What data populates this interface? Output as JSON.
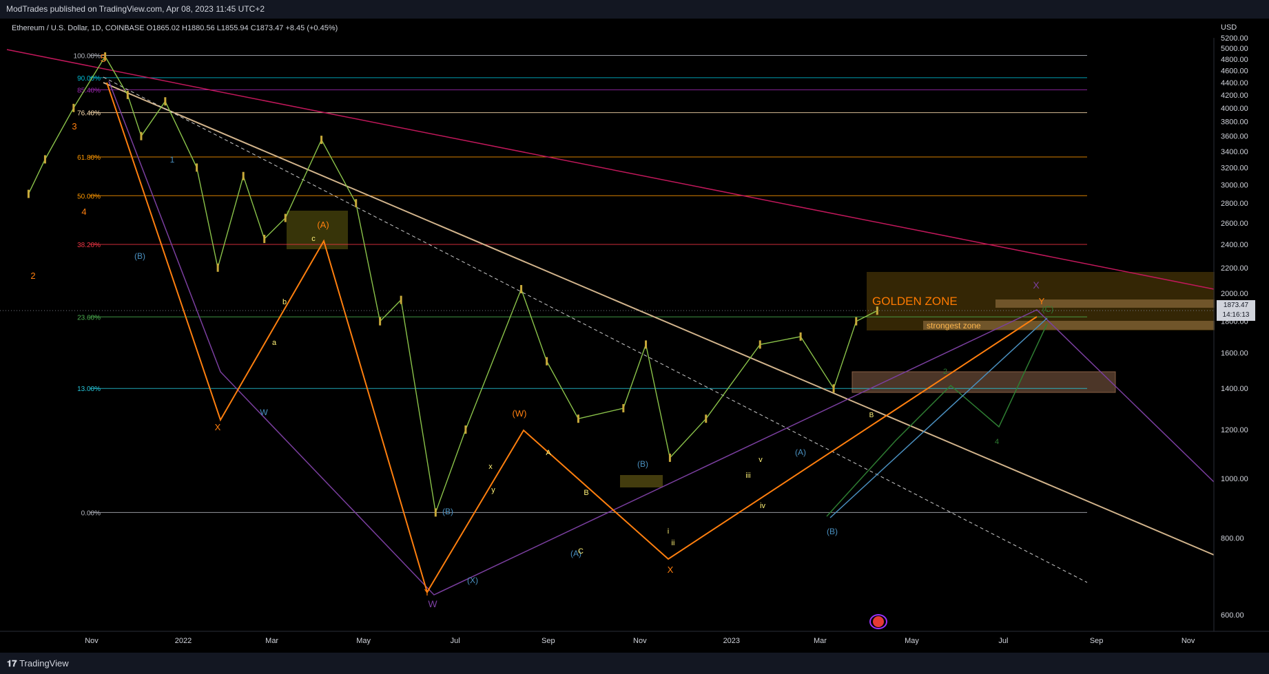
{
  "header": {
    "publish_line": "ModTrades published on TradingView.com, Apr 08, 2023 11:45 UTC+2"
  },
  "legend": {
    "text": "Ethereum / U.S. Dollar, 1D, COINBASE  O1865.02  H1880.56  L1855.94  C1873.47  +8.45 (+0.45%)"
  },
  "footer": {
    "brand": "TradingView"
  },
  "chart_data": {
    "type": "line",
    "symbol": "Ethereum / U.S. Dollar",
    "interval": "1D",
    "exchange": "COINBASE",
    "ohlc": {
      "open": 1865.02,
      "high": 1880.56,
      "low": 1855.94,
      "close": 1873.47,
      "change": 8.45,
      "change_pct": 0.45
    },
    "currency": "USD",
    "last_price": "1873.47",
    "countdown": "14:16:13",
    "y_axis_ticks": [
      5200,
      5000,
      4800,
      4600,
      4400,
      4200,
      4000,
      3800,
      3600,
      3400,
      3200,
      3000,
      2800,
      2600,
      2400,
      2200,
      2000,
      1800,
      1600,
      1400,
      1200,
      1000,
      800,
      600
    ],
    "y_axis_tick_labels": [
      "5200.00",
      "5000.00",
      "4800.00",
      "4600.00",
      "4400.00",
      "4200.00",
      "4000.00",
      "3800.00",
      "3600.00",
      "3400.00",
      "3200.00",
      "3000.00",
      "2800.00",
      "2600.00",
      "2400.00",
      "2200.00",
      "2000.00",
      "1800.00",
      "1600.00",
      "1400.00",
      "1200.00",
      "1000.00",
      "800.00",
      "600.00"
    ],
    "y_range": [
      480,
      5300
    ],
    "y_scale": "log",
    "x_axis_ticks": [
      {
        "label": "Nov",
        "date": "2021-11-01"
      },
      {
        "label": "2022",
        "date": "2022-01-01"
      },
      {
        "label": "Mar",
        "date": "2022-03-01"
      },
      {
        "label": "May",
        "date": "2022-05-01"
      },
      {
        "label": "Jul",
        "date": "2022-07-01"
      },
      {
        "label": "Sep",
        "date": "2022-09-01"
      },
      {
        "label": "Nov",
        "date": "2022-11-01"
      },
      {
        "label": "2023",
        "date": "2023-01-01"
      },
      {
        "label": "Mar",
        "date": "2023-03-01"
      },
      {
        "label": "May",
        "date": "2023-05-01"
      },
      {
        "label": "Jul",
        "date": "2023-07-01"
      },
      {
        "label": "Sep",
        "date": "2023-09-01"
      },
      {
        "label": "Nov",
        "date": "2023-11-01"
      }
    ],
    "fib_levels": [
      {
        "label": "100.00%",
        "price": 4870,
        "color": "#b2b5be"
      },
      {
        "label": "90.00%",
        "price": 4480,
        "color": "#00bcd4"
      },
      {
        "label": "85.40%",
        "price": 4280,
        "color": "#9c27b0"
      },
      {
        "label": "76.40%",
        "price": 3930,
        "color": "#ffe0b2"
      },
      {
        "label": "61.80%",
        "price": 3330,
        "color": "#ff9800"
      },
      {
        "label": "50.00%",
        "price": 2880,
        "color": "#ff9800"
      },
      {
        "label": "38.20%",
        "price": 2400,
        "color": "#f23645"
      },
      {
        "label": "23.60%",
        "price": 1830,
        "color": "#4caf50"
      },
      {
        "label": "13.00%",
        "price": 1400,
        "color": "#26c6da"
      },
      {
        "label": "0.00%",
        "price": 880,
        "color": "#b2b5be"
      }
    ],
    "price_path": [
      [
        "2021-09-20",
        2900
      ],
      [
        "2021-10-01",
        3300
      ],
      [
        "2021-10-20",
        4000
      ],
      [
        "2021-11-10",
        4850
      ],
      [
        "2021-11-25",
        4200
      ],
      [
        "2021-12-04",
        3600
      ],
      [
        "2021-12-20",
        4100
      ],
      [
        "2022-01-10",
        3200
      ],
      [
        "2022-01-24",
        2200
      ],
      [
        "2022-02-10",
        3100
      ],
      [
        "2022-02-24",
        2450
      ],
      [
        "2022-03-10",
        2650
      ],
      [
        "2022-04-03",
        3550
      ],
      [
        "2022-04-26",
        2800
      ],
      [
        "2022-05-12",
        1800
      ],
      [
        "2022-05-26",
        1950
      ],
      [
        "2022-06-18",
        880
      ],
      [
        "2022-07-08",
        1200
      ],
      [
        "2022-08-14",
        2030
      ],
      [
        "2022-08-31",
        1550
      ],
      [
        "2022-09-21",
        1250
      ],
      [
        "2022-10-21",
        1300
      ],
      [
        "2022-11-05",
        1650
      ],
      [
        "2022-11-21",
        1080
      ],
      [
        "2022-12-15",
        1250
      ],
      [
        "2023-01-20",
        1650
      ],
      [
        "2023-02-16",
        1700
      ],
      [
        "2023-03-10",
        1400
      ],
      [
        "2023-03-25",
        1800
      ],
      [
        "2023-04-08",
        1873
      ]
    ],
    "annotations": {
      "golden_zone_label": "GOLDEN ZONE",
      "strongest_zone_label": "strongest zone",
      "wave_labels": [
        "5",
        "3",
        "4",
        "2",
        "1",
        "(B)",
        "(A)",
        "X",
        "W",
        "(B)",
        "(W)",
        "Y",
        "W",
        "(X)",
        "(A)",
        "X",
        "(B)",
        "(A)",
        "(B)",
        "Y",
        "X",
        "B",
        "2",
        "4",
        "(C)",
        "ii",
        "iii",
        "iv",
        "i",
        "v",
        "a",
        "b",
        "c",
        "x",
        "y",
        "A",
        "B",
        "C"
      ]
    }
  }
}
